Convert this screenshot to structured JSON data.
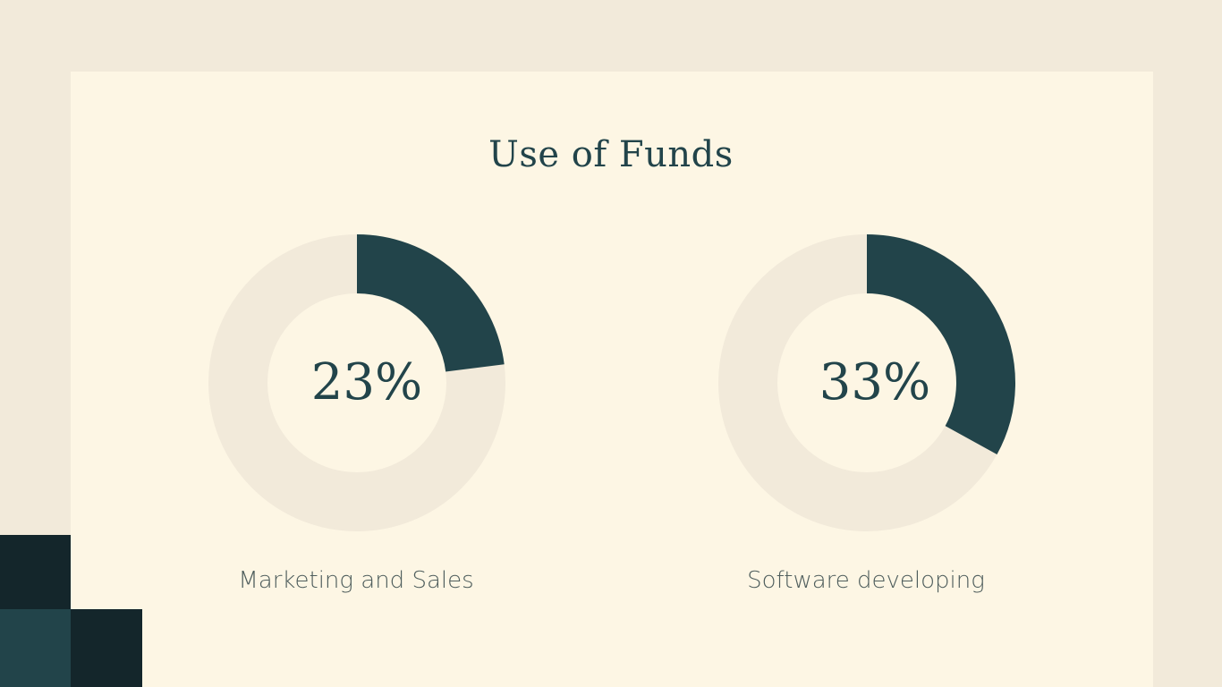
{
  "slide": {
    "title": "Use of Funds"
  },
  "colors": {
    "page_bg": "#f2eada",
    "card_bg": "#fdf6e4",
    "ring_track": "#f2eada",
    "ring_fill": "#22444a",
    "dark_square": "#14262b",
    "teal_square": "#22444a"
  },
  "chart_data": [
    {
      "type": "pie",
      "style": "donut",
      "value": 23,
      "center_label": "23%",
      "category": "Marketing and Sales"
    },
    {
      "type": "pie",
      "style": "donut",
      "value": 33,
      "center_label": "33%",
      "category": "Software developing"
    }
  ]
}
